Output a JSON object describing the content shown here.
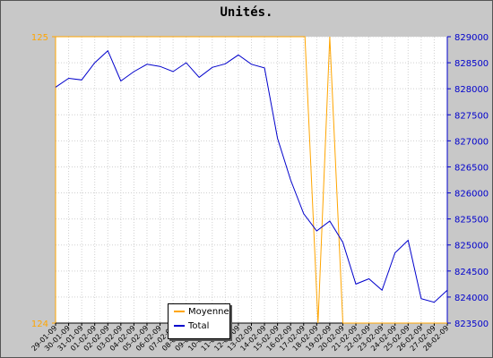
{
  "chart_data": {
    "type": "line",
    "title": "Unités.",
    "x_labels": [
      "29-01-09",
      "30-01-09",
      "31-01-09",
      "01-02-09",
      "02-02-09",
      "03-02-09",
      "04-02-09",
      "05-02-09",
      "06-02-09",
      "07-02-09",
      "08-02-09",
      "09-02-09",
      "10-02-09",
      "11-02-09",
      "12-02-09",
      "13-02-09",
      "14-02-09",
      "15-02-09",
      "16-02-09",
      "17-02-09",
      "18-02-09",
      "19-02-09",
      "20-02-09",
      "21-02-09",
      "22-02-09",
      "23-02-09",
      "24-02-09",
      "25-02-09",
      "26-02-09",
      "27-02-09",
      "28-02-09"
    ],
    "left_axis": {
      "ticks": [
        "125",
        "124"
      ],
      "ylim": [
        124,
        125
      ],
      "color": "#ffa500"
    },
    "right_axis": {
      "ticks": [
        "829000",
        "828500",
        "828000",
        "827500",
        "827000",
        "826500",
        "826000",
        "825500",
        "825000",
        "824500",
        "824000",
        "823500"
      ],
      "ylim": [
        823500,
        829000
      ],
      "color": "#0000cc"
    },
    "series": [
      {
        "name": "Moyenne",
        "axis": "left",
        "color": "#ffa500",
        "x": [
          0,
          19.1,
          20.1,
          21.0,
          22.0,
          30
        ],
        "values": [
          125,
          125,
          124,
          125,
          124,
          124
        ]
      },
      {
        "name": "Total",
        "axis": "right",
        "color": "#0000cc",
        "values": [
          828030,
          828200,
          828170,
          828500,
          828730,
          828150,
          828330,
          828470,
          828430,
          828330,
          828500,
          828220,
          828410,
          828480,
          828650,
          828470,
          828400,
          827050,
          826250,
          825600,
          825270,
          825460,
          825050,
          824250,
          824350,
          824130,
          824850,
          825090,
          823970,
          823900,
          824130
        ]
      }
    ],
    "legend": {
      "position": "bottom-center",
      "entries": [
        "Moyenne",
        "Total"
      ]
    }
  }
}
